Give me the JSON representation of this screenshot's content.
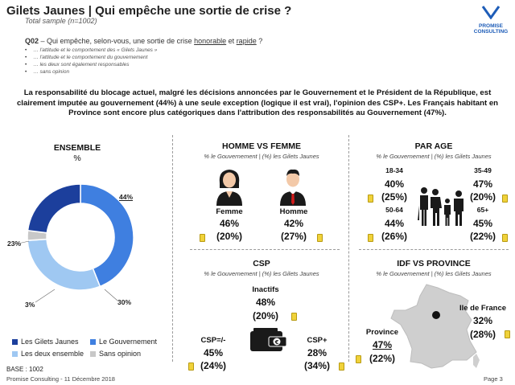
{
  "header": {
    "title": "Gilets Jaunes | Qui empêche une sortie de crise ?",
    "subtitle": "Total sample (n=1002)",
    "logo_line1": "PROMISE",
    "logo_line2": "CONSULTING",
    "brand_color": "#1e5db8"
  },
  "question": {
    "code": "Q02",
    "text_before": " – Qui empêche, selon-vous, une sortie de crise ",
    "emph1": "honorable",
    "text_mid": " et ",
    "emph2": "rapide",
    "text_after": " ?",
    "options": [
      "… l'attitude et le comportement des « Gilets Jaunes »",
      "… l'attitude et le comportement du gouvernement",
      "… les deux sont également responsables",
      "… sans opinion"
    ]
  },
  "summary": "La responsabilité du blocage actuel, malgré les décisions annoncées par le Gouvernement et le Président de la République, est clairement imputée au gouvernement (44%) à une seule exception (logique il est vrai), l'opinion des CSP+. Les Français habitant en Province sont encore plus catégoriques dans l'attribution des responsabilités au Gouvernement (47%).",
  "ensemble": {
    "title": "ENSEMBLE",
    "unit": "%",
    "legend": [
      {
        "label": "Les Gilets Jaunes",
        "color": "#1c3f9c"
      },
      {
        "label": "Le Gouvernement",
        "color": "#3f7fe0"
      },
      {
        "label": "Les deux ensemble",
        "color": "#9fc8f2"
      },
      {
        "label": "Sans opinion",
        "color": "#c8c8c8"
      }
    ],
    "labels": {
      "gouv": "44%",
      "gj": "23%",
      "deux": "30%",
      "sans": "3%"
    }
  },
  "chart_data": {
    "type": "pie",
    "title": "ENSEMBLE",
    "categories": [
      "Le Gouvernement",
      "Les deux ensemble",
      "Sans opinion",
      "Les Gilets Jaunes"
    ],
    "values": [
      44,
      30,
      3,
      23
    ],
    "colors": [
      "#3f7fe0",
      "#9fc8f2",
      "#c8c8c8",
      "#1c3f9c"
    ]
  },
  "homme_femme": {
    "title": "HOMME VS FEMME",
    "sub": "% le Gouvernement | (%) les Gilets Jaunes",
    "femme": {
      "label": "Femme",
      "gouv": "46%",
      "gj": "(20%)"
    },
    "homme": {
      "label": "Homme",
      "gouv": "42%",
      "gj": "(27%)"
    }
  },
  "age": {
    "title": "PAR AGE",
    "sub": "% le Gouvernement | (%) les Gilets Jaunes",
    "groups": [
      {
        "label": "18-34",
        "gouv": "40%",
        "gj": "(25%)"
      },
      {
        "label": "35-49",
        "gouv": "47%",
        "gj": "(20%)"
      },
      {
        "label": "50-64",
        "gouv": "44%",
        "gj": "(26%)"
      },
      {
        "label": "65+",
        "gouv": "45%",
        "gj": "(22%)"
      }
    ]
  },
  "csp": {
    "title": "CSP",
    "sub": "% le Gouvernement | (%) les Gilets Jaunes",
    "inactifs": {
      "label": "Inactifs",
      "gouv": "48%",
      "gj": "(20%)"
    },
    "moins": {
      "label": "CSP=/-",
      "gouv": "45%",
      "gj": "(24%)"
    },
    "plus": {
      "label": "CSP+",
      "gouv": "28%",
      "gj": "(34%)"
    }
  },
  "idf": {
    "title": "IDF VS PROVINCE",
    "sub": "% le Gouvernement | (%) les Gilets Jaunes",
    "province": {
      "label": "Province",
      "gouv": "47%",
      "gj": "(22%)"
    },
    "idf": {
      "label": "Ile de France",
      "gouv": "32%",
      "gj": "(28%)"
    }
  },
  "footer": {
    "base": "BASE : 1002",
    "credit": "Promise Consulting  - 11 Décembre 2018",
    "page": "Page 3"
  }
}
